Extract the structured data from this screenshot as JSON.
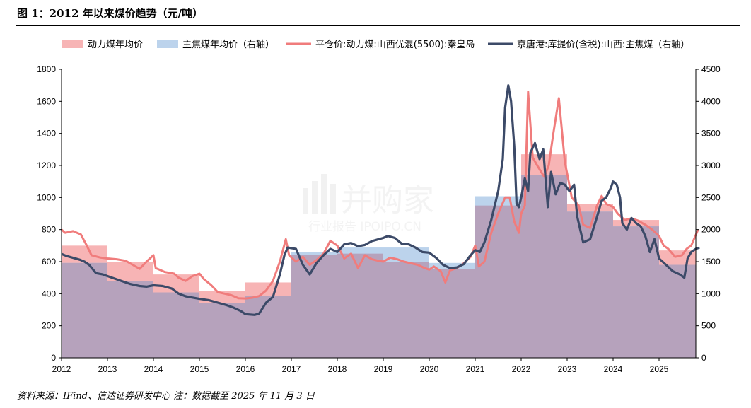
{
  "title": "图 1：2012 年以来煤价趋势（元/吨）",
  "source": "资料来源：IFind、信达证券研发中心 注：数据截至 2025 年 11 月 3 日",
  "watermark": {
    "brand": "并购家",
    "site": "行业报告 IPOIPO.CN"
  },
  "colors": {
    "thermal_bar": "#f7b4b5",
    "coking_bar": "#bcd3ec",
    "overlap": "#b6a2bc",
    "thermal_line": "#f07c7c",
    "coking_line": "#3c4a68"
  },
  "chart_data": {
    "type": "line",
    "x_ticks": [
      "2012",
      "2013",
      "2014",
      "2015",
      "2016",
      "2017",
      "2018",
      "2019",
      "2020",
      "2021",
      "2022",
      "2023",
      "2024",
      "2025"
    ],
    "left_axis": {
      "ylim": [
        0,
        1800
      ],
      "ticks": [
        "0",
        "200",
        "400",
        "600",
        "800",
        "1000",
        "1200",
        "1400",
        "1600",
        "1800"
      ]
    },
    "right_axis": {
      "ylim": [
        0,
        4500
      ],
      "ticks": [
        "0",
        "500",
        "1000",
        "1500",
        "2000",
        "2500",
        "3000",
        "3500",
        "4000",
        "4500"
      ]
    },
    "legend": [
      "动力煤年均价",
      "主焦煤年均价（右轴）",
      "平仓价:动力煤:山西优混(5500):秦皇岛",
      "京唐港:库提价(含税):山西:主焦煤（右轴）"
    ],
    "thermal_annual": {
      "years": [
        2012,
        2013,
        2014,
        2015,
        2016,
        2017,
        2018,
        2019,
        2020,
        2021,
        2022,
        2023,
        2024,
        2025
      ],
      "values": [
        700,
        600,
        520,
        415,
        470,
        640,
        650,
        600,
        555,
        950,
        1270,
        960,
        860,
        670
      ]
    },
    "coking_annual": {
      "years": [
        2012,
        2013,
        2014,
        2015,
        2016,
        2017,
        2018,
        2019,
        2020,
        2021,
        2022,
        2023,
        2024,
        2025
      ],
      "values": [
        1480,
        1200,
        1020,
        850,
        970,
        1650,
        1720,
        1720,
        1480,
        2520,
        2850,
        2280,
        2050,
        1450
      ]
    },
    "thermal_series": [
      [
        2012.0,
        800
      ],
      [
        2012.08,
        780
      ],
      [
        2012.25,
        790
      ],
      [
        2012.42,
        770
      ],
      [
        2012.55,
        700
      ],
      [
        2012.65,
        640
      ],
      [
        2012.85,
        625
      ],
      [
        2013.0,
        620
      ],
      [
        2013.2,
        615
      ],
      [
        2013.4,
        605
      ],
      [
        2013.55,
        580
      ],
      [
        2013.7,
        555
      ],
      [
        2013.85,
        600
      ],
      [
        2014.0,
        640
      ],
      [
        2014.05,
        560
      ],
      [
        2014.25,
        535
      ],
      [
        2014.45,
        525
      ],
      [
        2014.55,
        500
      ],
      [
        2014.7,
        480
      ],
      [
        2014.85,
        510
      ],
      [
        2015.0,
        525
      ],
      [
        2015.1,
        490
      ],
      [
        2015.25,
        455
      ],
      [
        2015.4,
        410
      ],
      [
        2015.55,
        400
      ],
      [
        2015.7,
        390
      ],
      [
        2015.85,
        372
      ],
      [
        2016.0,
        370
      ],
      [
        2016.15,
        375
      ],
      [
        2016.3,
        385
      ],
      [
        2016.45,
        420
      ],
      [
        2016.6,
        480
      ],
      [
        2016.75,
        600
      ],
      [
        2016.88,
        740
      ],
      [
        2016.95,
        640
      ],
      [
        2017.1,
        600
      ],
      [
        2017.25,
        630
      ],
      [
        2017.4,
        580
      ],
      [
        2017.55,
        610
      ],
      [
        2017.7,
        650
      ],
      [
        2017.85,
        730
      ],
      [
        2018.0,
        700
      ],
      [
        2018.15,
        620
      ],
      [
        2018.3,
        650
      ],
      [
        2018.45,
        560
      ],
      [
        2018.6,
        640
      ],
      [
        2018.75,
        615
      ],
      [
        2018.9,
        605
      ],
      [
        2019.0,
        600
      ],
      [
        2019.15,
        625
      ],
      [
        2019.3,
        615
      ],
      [
        2019.45,
        600
      ],
      [
        2019.6,
        590
      ],
      [
        2019.75,
        580
      ],
      [
        2019.9,
        560
      ],
      [
        2020.0,
        550
      ],
      [
        2020.1,
        570
      ],
      [
        2020.25,
        540
      ],
      [
        2020.35,
        470
      ],
      [
        2020.45,
        545
      ],
      [
        2020.6,
        560
      ],
      [
        2020.75,
        590
      ],
      [
        2020.9,
        630
      ],
      [
        2021.0,
        700
      ],
      [
        2021.08,
        570
      ],
      [
        2021.2,
        600
      ],
      [
        2021.35,
        780
      ],
      [
        2021.5,
        900
      ],
      [
        2021.65,
        1000
      ],
      [
        2021.75,
        1000
      ],
      [
        2021.85,
        850
      ],
      [
        2021.95,
        780
      ],
      [
        2022.0,
        900
      ],
      [
        2022.08,
        950
      ],
      [
        2022.15,
        1660
      ],
      [
        2022.25,
        1250
      ],
      [
        2022.35,
        1200
      ],
      [
        2022.5,
        1130
      ],
      [
        2022.6,
        1200
      ],
      [
        2022.7,
        1400
      ],
      [
        2022.82,
        1620
      ],
      [
        2022.95,
        1220
      ],
      [
        2023.0,
        1150
      ],
      [
        2023.1,
        1000
      ],
      [
        2023.25,
        950
      ],
      [
        2023.35,
        830
      ],
      [
        2023.5,
        810
      ],
      [
        2023.65,
        950
      ],
      [
        2023.75,
        1010
      ],
      [
        2023.85,
        960
      ],
      [
        2024.0,
        940
      ],
      [
        2024.1,
        900
      ],
      [
        2024.25,
        860
      ],
      [
        2024.4,
        870
      ],
      [
        2024.55,
        855
      ],
      [
        2024.7,
        830
      ],
      [
        2024.85,
        800
      ],
      [
        2025.0,
        760
      ],
      [
        2025.1,
        700
      ],
      [
        2025.2,
        680
      ],
      [
        2025.35,
        630
      ],
      [
        2025.5,
        640
      ],
      [
        2025.6,
        680
      ],
      [
        2025.7,
        700
      ],
      [
        2025.85,
        800
      ]
    ],
    "coking_series": [
      [
        2012.0,
        1620
      ],
      [
        2012.1,
        1590
      ],
      [
        2012.25,
        1560
      ],
      [
        2012.4,
        1530
      ],
      [
        2012.5,
        1500
      ],
      [
        2012.6,
        1450
      ],
      [
        2012.75,
        1320
      ],
      [
        2012.9,
        1300
      ],
      [
        2013.1,
        1250
      ],
      [
        2013.3,
        1200
      ],
      [
        2013.5,
        1150
      ],
      [
        2013.7,
        1120
      ],
      [
        2013.85,
        1110
      ],
      [
        2014.0,
        1130
      ],
      [
        2014.2,
        1120
      ],
      [
        2014.4,
        1080
      ],
      [
        2014.55,
        1000
      ],
      [
        2014.7,
        960
      ],
      [
        2014.85,
        940
      ],
      [
        2015.0,
        920
      ],
      [
        2015.2,
        900
      ],
      [
        2015.4,
        860
      ],
      [
        2015.6,
        820
      ],
      [
        2015.75,
        780
      ],
      [
        2015.9,
        730
      ],
      [
        2016.0,
        680
      ],
      [
        2016.2,
        670
      ],
      [
        2016.3,
        690
      ],
      [
        2016.45,
        860
      ],
      [
        2016.6,
        950
      ],
      [
        2016.75,
        1300
      ],
      [
        2016.85,
        1600
      ],
      [
        2016.92,
        1720
      ],
      [
        2017.1,
        1700
      ],
      [
        2017.25,
        1450
      ],
      [
        2017.4,
        1300
      ],
      [
        2017.55,
        1480
      ],
      [
        2017.7,
        1600
      ],
      [
        2017.85,
        1700
      ],
      [
        2018.0,
        1650
      ],
      [
        2018.15,
        1770
      ],
      [
        2018.3,
        1790
      ],
      [
        2018.45,
        1740
      ],
      [
        2018.6,
        1760
      ],
      [
        2018.75,
        1820
      ],
      [
        2018.9,
        1850
      ],
      [
        2019.0,
        1870
      ],
      [
        2019.1,
        1900
      ],
      [
        2019.25,
        1870
      ],
      [
        2019.4,
        1780
      ],
      [
        2019.55,
        1770
      ],
      [
        2019.7,
        1720
      ],
      [
        2019.85,
        1650
      ],
      [
        2020.0,
        1640
      ],
      [
        2020.15,
        1560
      ],
      [
        2020.3,
        1450
      ],
      [
        2020.45,
        1400
      ],
      [
        2020.6,
        1410
      ],
      [
        2020.75,
        1460
      ],
      [
        2020.9,
        1600
      ],
      [
        2021.0,
        1680
      ],
      [
        2021.1,
        1650
      ],
      [
        2021.2,
        1800
      ],
      [
        2021.35,
        2150
      ],
      [
        2021.5,
        2600
      ],
      [
        2021.6,
        3100
      ],
      [
        2021.65,
        3900
      ],
      [
        2021.72,
        4250
      ],
      [
        2021.78,
        4000
      ],
      [
        2021.85,
        3300
      ],
      [
        2021.9,
        2400
      ],
      [
        2021.95,
        2350
      ],
      [
        2022.0,
        2500
      ],
      [
        2022.08,
        2800
      ],
      [
        2022.15,
        2600
      ],
      [
        2022.2,
        3200
      ],
      [
        2022.3,
        3350
      ],
      [
        2022.4,
        3100
      ],
      [
        2022.48,
        3250
      ],
      [
        2022.58,
        2350
      ],
      [
        2022.65,
        2900
      ],
      [
        2022.75,
        2550
      ],
      [
        2022.85,
        2730
      ],
      [
        2022.95,
        2700
      ],
      [
        2023.05,
        2600
      ],
      [
        2023.15,
        2700
      ],
      [
        2023.22,
        2200
      ],
      [
        2023.35,
        1800
      ],
      [
        2023.5,
        1850
      ],
      [
        2023.65,
        2200
      ],
      [
        2023.75,
        2450
      ],
      [
        2023.85,
        2500
      ],
      [
        2023.95,
        2650
      ],
      [
        2024.0,
        2750
      ],
      [
        2024.08,
        2700
      ],
      [
        2024.15,
        2500
      ],
      [
        2024.2,
        2100
      ],
      [
        2024.3,
        2000
      ],
      [
        2024.4,
        2180
      ],
      [
        2024.5,
        2100
      ],
      [
        2024.6,
        2050
      ],
      [
        2024.7,
        1900
      ],
      [
        2024.8,
        1650
      ],
      [
        2024.9,
        1850
      ],
      [
        2025.0,
        1550
      ],
      [
        2025.15,
        1450
      ],
      [
        2025.3,
        1350
      ],
      [
        2025.45,
        1300
      ],
      [
        2025.55,
        1250
      ],
      [
        2025.62,
        1550
      ],
      [
        2025.7,
        1650
      ],
      [
        2025.8,
        1700
      ],
      [
        2025.88,
        1720
      ]
    ]
  }
}
